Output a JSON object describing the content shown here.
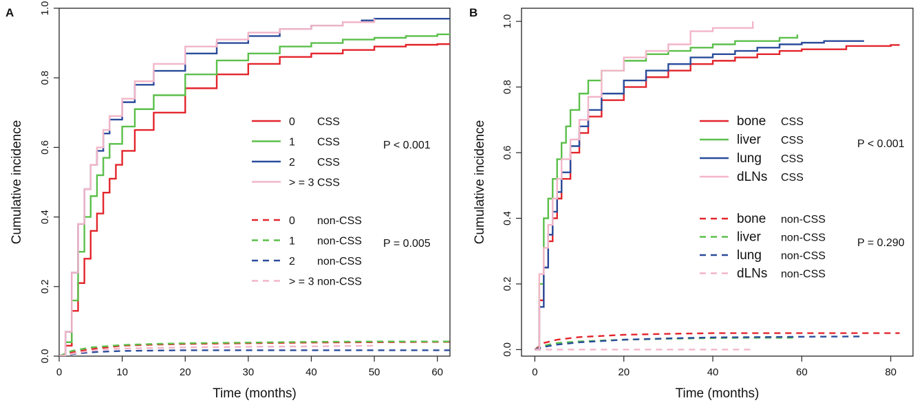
{
  "colors": {
    "red": "#e3242b",
    "green": "#5bbf4a",
    "blue": "#2a4b9b",
    "pink": "#f2b5c8"
  },
  "chart_data": [
    {
      "type": "line",
      "panel": "A",
      "xlabel": "Time (months)",
      "ylabel": "Cumulative incidence",
      "xlim": [
        0,
        62
      ],
      "ylim": [
        0,
        1.0
      ],
      "xticks": [
        0,
        10,
        20,
        30,
        40,
        50,
        60
      ],
      "yticks": [
        0.0,
        0.2,
        0.4,
        0.6,
        0.8,
        1.0
      ],
      "legend_csv_css_label": "CSS",
      "annotations": [
        {
          "text": "P < 0.001",
          "group": "css"
        },
        {
          "text": "P = 0.005",
          "group": "noncss"
        }
      ],
      "series": [
        {
          "name": "0",
          "suffix": "CSS",
          "color": "red",
          "dash": false,
          "step": true,
          "x": [
            0,
            1,
            2,
            3,
            4,
            5,
            6,
            7,
            8,
            9,
            10,
            12,
            15,
            20,
            25,
            30,
            35,
            40,
            45,
            50,
            55,
            60,
            62
          ],
          "y": [
            0,
            0.03,
            0.13,
            0.21,
            0.28,
            0.36,
            0.41,
            0.47,
            0.51,
            0.55,
            0.59,
            0.65,
            0.7,
            0.77,
            0.81,
            0.84,
            0.86,
            0.87,
            0.88,
            0.89,
            0.895,
            0.897,
            0.898
          ]
        },
        {
          "name": "1",
          "suffix": "CSS",
          "color": "green",
          "dash": false,
          "step": true,
          "x": [
            0,
            1,
            2,
            3,
            4,
            5,
            6,
            7,
            8,
            10,
            12,
            15,
            20,
            25,
            30,
            35,
            40,
            45,
            50,
            55,
            60,
            62
          ],
          "y": [
            0,
            0.04,
            0.16,
            0.3,
            0.4,
            0.46,
            0.52,
            0.57,
            0.61,
            0.66,
            0.71,
            0.75,
            0.81,
            0.85,
            0.87,
            0.89,
            0.9,
            0.91,
            0.915,
            0.92,
            0.925,
            0.928
          ]
        },
        {
          "name": "2",
          "suffix": "CSS",
          "color": "blue",
          "dash": false,
          "step": true,
          "x": [
            0,
            1,
            2,
            3,
            4,
            5,
            6,
            7,
            8,
            10,
            12,
            15,
            20,
            25,
            30,
            35,
            40,
            45,
            48,
            50,
            55,
            60,
            62
          ],
          "y": [
            0,
            0.07,
            0.24,
            0.38,
            0.48,
            0.55,
            0.59,
            0.64,
            0.68,
            0.73,
            0.78,
            0.82,
            0.87,
            0.9,
            0.92,
            0.94,
            0.95,
            0.96,
            0.965,
            0.97,
            0.97,
            0.97,
            0.97
          ]
        },
        {
          "name": ">= 3",
          "label_text": "> = 3",
          "suffix": "CSS",
          "color": "pink",
          "dash": false,
          "step": true,
          "x": [
            0,
            1,
            2,
            3,
            4,
            5,
            6,
            7,
            8,
            10,
            12,
            15,
            20,
            25,
            30,
            35,
            40,
            45,
            50
          ],
          "y": [
            0,
            0.07,
            0.24,
            0.38,
            0.48,
            0.55,
            0.6,
            0.65,
            0.69,
            0.74,
            0.79,
            0.84,
            0.89,
            0.91,
            0.93,
            0.94,
            0.95,
            0.96,
            0.97
          ]
        },
        {
          "name": "0",
          "suffix": "non-CSS",
          "color": "red",
          "dash": true,
          "step": false,
          "x": [
            0,
            2,
            5,
            10,
            15,
            20,
            30,
            40,
            50,
            62
          ],
          "y": [
            0,
            0.01,
            0.02,
            0.03,
            0.033,
            0.035,
            0.037,
            0.039,
            0.04,
            0.041
          ]
        },
        {
          "name": "1",
          "suffix": "non-CSS",
          "color": "green",
          "dash": true,
          "step": false,
          "x": [
            0,
            2,
            5,
            10,
            15,
            20,
            30,
            40,
            50,
            62
          ],
          "y": [
            0,
            0.015,
            0.025,
            0.032,
            0.035,
            0.037,
            0.039,
            0.041,
            0.042,
            0.042
          ]
        },
        {
          "name": "2",
          "suffix": "non-CSS",
          "color": "blue",
          "dash": true,
          "step": false,
          "x": [
            0,
            3,
            6,
            10,
            15,
            20,
            30,
            40,
            50,
            62
          ],
          "y": [
            0,
            0.008,
            0.012,
            0.015,
            0.016,
            0.017,
            0.017,
            0.017,
            0.017,
            0.017
          ]
        },
        {
          "name": ">= 3",
          "label_text": "> = 3",
          "suffix": "non-CSS",
          "color": "pink",
          "dash": true,
          "step": false,
          "x": [
            0,
            3,
            6,
            10,
            20,
            30,
            40,
            50
          ],
          "y": [
            0,
            0.01,
            0.018,
            0.022,
            0.025,
            0.027,
            0.028,
            0.03
          ]
        }
      ]
    },
    {
      "type": "line",
      "panel": "B",
      "xlabel": "Time (months)",
      "ylabel": "Cumulative incidence",
      "xlim": [
        -3,
        85
      ],
      "ylim": [
        -0.02,
        1.04
      ],
      "xticks": [
        0,
        20,
        40,
        60,
        80
      ],
      "yticks": [
        0.0,
        0.2,
        0.4,
        0.6,
        0.8,
        1.0
      ],
      "annotations": [
        {
          "text": "P < 0.001",
          "group": "css"
        },
        {
          "text": "P = 0.290",
          "group": "noncss"
        }
      ],
      "series": [
        {
          "name": "bone",
          "suffix": "CSS",
          "color": "red",
          "dash": false,
          "step": true,
          "x": [
            0,
            1,
            2,
            3,
            4,
            5,
            6,
            8,
            10,
            12,
            15,
            20,
            25,
            30,
            35,
            40,
            45,
            50,
            55,
            60,
            70,
            80,
            82
          ],
          "y": [
            0,
            0.15,
            0.25,
            0.33,
            0.4,
            0.46,
            0.52,
            0.6,
            0.66,
            0.71,
            0.76,
            0.8,
            0.83,
            0.85,
            0.87,
            0.88,
            0.89,
            0.9,
            0.91,
            0.915,
            0.925,
            0.928,
            0.928
          ]
        },
        {
          "name": "liver",
          "suffix": "CSS",
          "color": "green",
          "dash": false,
          "step": true,
          "x": [
            0,
            1,
            2,
            3,
            4,
            5,
            6,
            7,
            8,
            10,
            12,
            15,
            20,
            25,
            30,
            35,
            40,
            45,
            50,
            55,
            59
          ],
          "y": [
            0,
            0.2,
            0.4,
            0.46,
            0.52,
            0.58,
            0.63,
            0.68,
            0.73,
            0.78,
            0.82,
            0.85,
            0.88,
            0.9,
            0.91,
            0.92,
            0.93,
            0.94,
            0.94,
            0.95,
            0.96
          ]
        },
        {
          "name": "lung",
          "suffix": "CSS",
          "color": "blue",
          "dash": false,
          "step": true,
          "x": [
            0,
            1,
            2,
            3,
            4,
            5,
            6,
            8,
            10,
            12,
            15,
            20,
            25,
            30,
            35,
            40,
            45,
            50,
            55,
            60,
            65,
            70,
            74
          ],
          "y": [
            0,
            0.13,
            0.25,
            0.35,
            0.42,
            0.48,
            0.54,
            0.62,
            0.68,
            0.73,
            0.78,
            0.82,
            0.85,
            0.87,
            0.89,
            0.9,
            0.91,
            0.92,
            0.93,
            0.935,
            0.94,
            0.94,
            0.94
          ]
        },
        {
          "name": "dLNs",
          "suffix": "CSS",
          "color": "pink",
          "dash": false,
          "step": true,
          "x": [
            0,
            1,
            2,
            3,
            4,
            5,
            6,
            8,
            10,
            12,
            15,
            20,
            25,
            30,
            35,
            40,
            45,
            49
          ],
          "y": [
            0,
            0.23,
            0.31,
            0.38,
            0.46,
            0.52,
            0.58,
            0.64,
            0.7,
            0.77,
            0.85,
            0.89,
            0.91,
            0.93,
            0.97,
            0.98,
            0.98,
            1.0
          ]
        },
        {
          "name": "bone",
          "suffix": "non-CSS",
          "color": "red",
          "dash": true,
          "step": false,
          "x": [
            0,
            2,
            5,
            10,
            20,
            30,
            40,
            50,
            60,
            70,
            82
          ],
          "y": [
            0,
            0.02,
            0.03,
            0.038,
            0.045,
            0.048,
            0.05,
            0.05,
            0.05,
            0.05,
            0.05
          ]
        },
        {
          "name": "liver",
          "suffix": "non-CSS",
          "color": "green",
          "dash": true,
          "step": false,
          "x": [
            0,
            2,
            5,
            10,
            20,
            30,
            40,
            50,
            59
          ],
          "y": [
            0,
            0.012,
            0.02,
            0.025,
            0.03,
            0.033,
            0.035,
            0.036,
            0.036
          ]
        },
        {
          "name": "lung",
          "suffix": "non-CSS",
          "color": "blue",
          "dash": true,
          "step": false,
          "x": [
            0,
            2,
            5,
            10,
            20,
            30,
            40,
            50,
            60,
            74
          ],
          "y": [
            0,
            0.008,
            0.015,
            0.022,
            0.03,
            0.034,
            0.037,
            0.038,
            0.039,
            0.04
          ]
        },
        {
          "name": "dLNs",
          "suffix": "non-CSS",
          "color": "pink",
          "dash": true,
          "step": false,
          "x": [
            0,
            2,
            4,
            10,
            20,
            30,
            40,
            49
          ],
          "y": [
            0,
            0,
            0,
            0,
            0,
            0,
            0,
            0
          ]
        }
      ]
    }
  ]
}
